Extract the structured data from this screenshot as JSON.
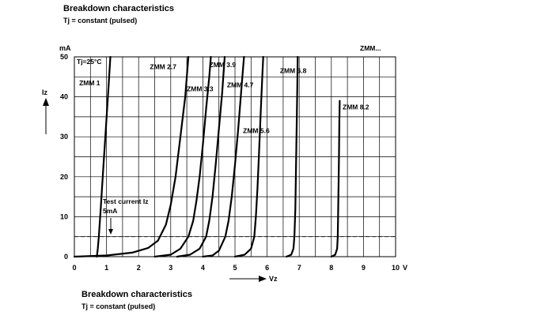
{
  "header": {
    "title": "Breakdown characteristics",
    "subtitle": "Tj = constant (pulsed)"
  },
  "footer": {
    "title": "Breakdown characteristics",
    "subtitle": "Tj = constant (pulsed)"
  },
  "chart_data": {
    "type": "line",
    "xlabel": "Vz",
    "ylabel": "Iz",
    "y_unit": "mA",
    "x_unit": "V",
    "xlim": [
      0,
      10
    ],
    "ylim": [
      0,
      50
    ],
    "x_ticks": [
      "0",
      "1",
      "2",
      "3",
      "4",
      "5",
      "6",
      "7",
      "8",
      "9",
      "10"
    ],
    "y_ticks": [
      "0",
      "10",
      "20",
      "30",
      "40",
      "50"
    ],
    "grid": true,
    "temperature_note": "Tj=25°C",
    "family_label": "ZMM...",
    "test_current": {
      "label": "Test current Iz",
      "value_label": "5mA",
      "value": 5
    },
    "series": [
      {
        "name": "ZMM 1",
        "label_pos": [
          0.15,
          43.5
        ],
        "points": [
          [
            0.7,
            0
          ],
          [
            0.73,
            2
          ],
          [
            0.76,
            5
          ],
          [
            0.82,
            12
          ],
          [
            0.9,
            22
          ],
          [
            0.98,
            32
          ],
          [
            1.06,
            42
          ],
          [
            1.12,
            50
          ]
        ]
      },
      {
        "name": "ZMM 2.7",
        "label_pos": [
          2.35,
          47.5
        ],
        "points": [
          [
            0,
            0
          ],
          [
            1.0,
            0.3
          ],
          [
            1.8,
            1
          ],
          [
            2.3,
            2.2
          ],
          [
            2.6,
            4
          ],
          [
            2.85,
            8
          ],
          [
            3.0,
            13
          ],
          [
            3.15,
            20
          ],
          [
            3.3,
            30
          ],
          [
            3.45,
            40
          ],
          [
            3.55,
            50
          ]
        ]
      },
      {
        "name": "ZMM 3.3",
        "label_pos": [
          3.5,
          42
        ],
        "points": [
          [
            2.5,
            0
          ],
          [
            3.0,
            0.5
          ],
          [
            3.3,
            2
          ],
          [
            3.55,
            5
          ],
          [
            3.7,
            9
          ],
          [
            3.8,
            14
          ],
          [
            3.9,
            20
          ],
          [
            4.0,
            28
          ],
          [
            4.1,
            37
          ],
          [
            4.2,
            45
          ],
          [
            4.25,
            50
          ]
        ]
      },
      {
        "name": "ZMM 3.9",
        "label_pos": [
          4.2,
          48
        ],
        "points": [
          [
            3.2,
            0
          ],
          [
            3.6,
            0.5
          ],
          [
            3.9,
            2
          ],
          [
            4.1,
            5
          ],
          [
            4.2,
            9
          ],
          [
            4.3,
            15
          ],
          [
            4.4,
            23
          ],
          [
            4.5,
            32
          ],
          [
            4.6,
            41
          ],
          [
            4.68,
            50
          ]
        ]
      },
      {
        "name": "ZMM 4.7",
        "label_pos": [
          4.75,
          43
        ],
        "points": [
          [
            4.0,
            0
          ],
          [
            4.3,
            0.3
          ],
          [
            4.5,
            1.5
          ],
          [
            4.7,
            5
          ],
          [
            4.8,
            9
          ],
          [
            4.9,
            15
          ],
          [
            5.0,
            23
          ],
          [
            5.1,
            32
          ],
          [
            5.2,
            42
          ],
          [
            5.28,
            50
          ]
        ]
      },
      {
        "name": "ZMM 5.6",
        "label_pos": [
          5.25,
          31.5
        ],
        "points": [
          [
            5.0,
            0
          ],
          [
            5.3,
            0.5
          ],
          [
            5.5,
            2
          ],
          [
            5.6,
            5
          ],
          [
            5.65,
            10
          ],
          [
            5.7,
            17
          ],
          [
            5.75,
            26
          ],
          [
            5.8,
            36
          ],
          [
            5.85,
            45
          ],
          [
            5.88,
            50
          ]
        ]
      },
      {
        "name": "ZMM 6.8",
        "label_pos": [
          6.4,
          46.5
        ],
        "points": [
          [
            6.6,
            0
          ],
          [
            6.75,
            0.5
          ],
          [
            6.82,
            2
          ],
          [
            6.85,
            5
          ],
          [
            6.88,
            12
          ],
          [
            6.9,
            22
          ],
          [
            6.92,
            33
          ],
          [
            6.94,
            43
          ],
          [
            6.95,
            50
          ]
        ]
      },
      {
        "name": "ZMM 8.2",
        "label_pos": [
          8.35,
          37.5
        ],
        "points": [
          [
            8.0,
            0
          ],
          [
            8.12,
            0.5
          ],
          [
            8.18,
            2
          ],
          [
            8.2,
            5
          ],
          [
            8.22,
            15
          ],
          [
            8.24,
            26
          ],
          [
            8.25,
            34
          ],
          [
            8.26,
            39
          ]
        ]
      }
    ]
  }
}
